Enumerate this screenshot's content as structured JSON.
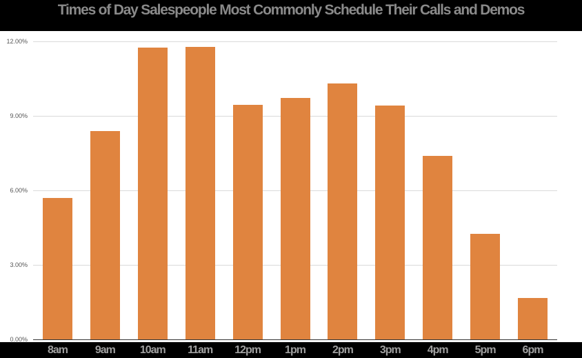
{
  "chart_data": {
    "type": "bar",
    "title": "Times of Day Salespeople Most Commonly Schedule Their Calls and Demos",
    "xlabel": "",
    "ylabel": "",
    "categories": [
      "8am",
      "9am",
      "10am",
      "11am",
      "12pm",
      "1pm",
      "2pm",
      "3pm",
      "4pm",
      "5pm",
      "6pm"
    ],
    "values": [
      5.7,
      8.4,
      11.75,
      11.78,
      9.45,
      9.72,
      10.31,
      9.42,
      7.4,
      4.26,
      1.66
    ],
    "value_unit": "%",
    "ylim": [
      0,
      12
    ],
    "yticks": [
      "0.00%",
      "3.00%",
      "6.00%",
      "9.00%",
      "12.00%"
    ],
    "grid": true,
    "legend": null,
    "bar_color": "#e0843f"
  },
  "colors": {
    "bar": "#e0843f",
    "title_bg": "#000000",
    "title_text": "#8a8a8a",
    "xtick_text": "#a0a0a0",
    "grid": "#d9d9d9"
  }
}
